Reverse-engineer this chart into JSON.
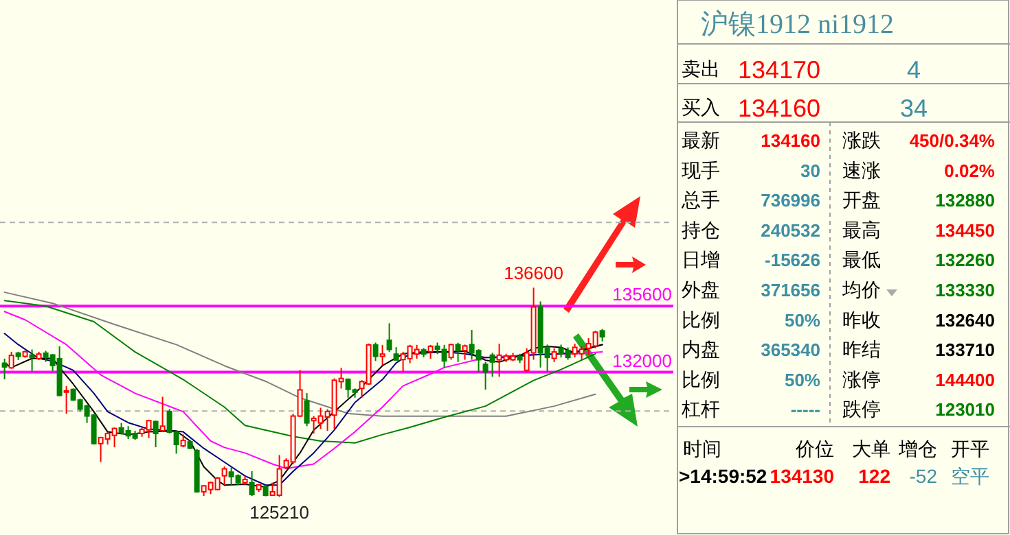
{
  "chart_data": [
    {
      "type": "candlestick",
      "tick_labels": false,
      "categories": [
        null,
        null,
        null,
        null,
        null,
        null,
        null,
        null,
        null,
        null,
        null,
        null,
        null,
        null,
        null,
        null,
        null,
        null,
        null,
        null,
        null,
        null,
        null,
        null,
        null,
        null,
        null,
        null,
        null,
        null,
        null,
        null,
        null,
        null,
        null,
        null,
        null,
        null,
        null,
        null,
        null,
        null,
        null,
        null,
        null,
        null,
        null,
        null,
        null,
        null,
        null,
        null,
        null,
        null,
        null,
        null,
        null,
        null,
        null,
        null,
        null,
        null,
        null,
        null,
        null,
        null,
        null,
        null,
        null,
        null,
        null,
        null,
        null,
        null,
        null,
        null,
        null,
        null,
        null,
        null,
        null,
        null,
        null,
        null,
        null,
        null,
        null,
        null
      ],
      "ohlc": [
        [
          132485,
          132735,
          131610,
          132285
        ],
        [
          132235,
          133110,
          132185,
          132910
        ],
        [
          133035,
          133110,
          132660,
          132860
        ],
        [
          132860,
          133185,
          132785,
          133110
        ],
        [
          132935,
          133235,
          132060,
          132810
        ],
        [
          132735,
          133110,
          132660,
          132985
        ],
        [
          133035,
          133160,
          132560,
          132810
        ],
        [
          132935,
          132985,
          132060,
          132360
        ],
        [
          132735,
          133410,
          130685,
          130735
        ],
        [
          130910,
          131235,
          129735,
          130985
        ],
        [
          131060,
          131110,
          130435,
          130485
        ],
        [
          130485,
          130560,
          129860,
          129985
        ],
        [
          130160,
          130235,
          129235,
          129610
        ],
        [
          129660,
          129735,
          128060,
          128110
        ],
        [
          128110,
          128485,
          127110,
          128435
        ],
        [
          128360,
          128735,
          128060,
          128660
        ],
        [
          128560,
          128985,
          127910,
          128935
        ],
        [
          128960,
          129235,
          128610,
          128735
        ],
        [
          128810,
          129060,
          128360,
          128535
        ],
        [
          128660,
          128810,
          128310,
          128410
        ],
        [
          128660,
          128985,
          128485,
          128885
        ],
        [
          128860,
          129410,
          128410,
          129360
        ],
        [
          129310,
          129360,
          127910,
          128660
        ],
        [
          128810,
          130660,
          128735,
          129060
        ],
        [
          129860,
          129985,
          128660,
          128735
        ],
        [
          128735,
          128810,
          127560,
          128060
        ],
        [
          127985,
          128610,
          127910,
          128285
        ],
        [
          128210,
          128310,
          127810,
          127860
        ],
        [
          127735,
          127810,
          125435,
          125485
        ],
        [
          125485,
          125860,
          125260,
          125810
        ],
        [
          125610,
          126035,
          125360,
          125985
        ],
        [
          125610,
          126285,
          125560,
          126235
        ],
        [
          126360,
          126860,
          125860,
          126735
        ],
        [
          126560,
          126810,
          125860,
          126310
        ],
        [
          126360,
          126435,
          125860,
          125985
        ],
        [
          125985,
          126360,
          125860,
          126160
        ],
        [
          125985,
          126610,
          125260,
          125335
        ],
        [
          125610,
          125910,
          125485,
          125860
        ],
        [
          125785,
          125860,
          125240,
          125300
        ],
        [
          125300,
          125985,
          125260,
          125485
        ],
        [
          125300,
          127485,
          125210,
          126735
        ],
        [
          126810,
          127310,
          126735,
          127185
        ],
        [
          127110,
          129735,
          126985,
          129610
        ],
        [
          129610,
          132110,
          129560,
          131035
        ],
        [
          130435,
          130860,
          129060,
          129235
        ],
        [
          129360,
          129610,
          128660,
          129485
        ],
        [
          129235,
          130060,
          128910,
          129610
        ],
        [
          129560,
          129985,
          128810,
          129860
        ],
        [
          129660,
          131660,
          128910,
          131560
        ],
        [
          131485,
          132235,
          131110,
          131660
        ],
        [
          131610,
          131660,
          130610,
          131060
        ],
        [
          131035,
          131110,
          130610,
          130910
        ],
        [
          131110,
          131560,
          130610,
          131485
        ],
        [
          131360,
          133560,
          131310,
          133485
        ],
        [
          133485,
          133610,
          132610,
          132860
        ],
        [
          132860,
          133485,
          132360,
          132985
        ],
        [
          133735,
          134660,
          133110,
          133235
        ],
        [
          132985,
          133360,
          132660,
          132660
        ],
        [
          132685,
          133110,
          132035,
          132985
        ],
        [
          132735,
          133485,
          132485,
          133410
        ],
        [
          132985,
          133485,
          132735,
          133235
        ],
        [
          133210,
          133310,
          132810,
          132985
        ],
        [
          133110,
          133485,
          132735,
          133410
        ],
        [
          133410,
          133610,
          132985,
          133235
        ],
        [
          133235,
          133485,
          132235,
          132610
        ],
        [
          132800,
          133550,
          132675,
          133500
        ],
        [
          133500,
          133600,
          132550,
          133175
        ],
        [
          133175,
          133500,
          132675,
          133425
        ],
        [
          133500,
          134300,
          132675,
          133050
        ],
        [
          133175,
          133250,
          132000,
          132675
        ],
        [
          132425,
          132550,
          131050,
          132000
        ],
        [
          132925,
          133050,
          131750,
          132550
        ],
        [
          132675,
          133550,
          131750,
          132925
        ],
        [
          132675,
          133000,
          132550,
          132875
        ],
        [
          132675,
          133050,
          132600,
          132875
        ],
        [
          132850,
          133000,
          132500,
          132675
        ],
        [
          132100,
          133300,
          132000,
          133050
        ],
        [
          133050,
          136600,
          132675,
          135550
        ],
        [
          135550,
          135850,
          132250,
          133050
        ],
        [
          133350,
          133500,
          132050,
          132800
        ],
        [
          132750,
          133300,
          132550,
          133100
        ],
        [
          133300,
          133500,
          132800,
          133000
        ],
        [
          133175,
          133350,
          132675,
          132800
        ],
        [
          133000,
          133550,
          132800,
          133350
        ],
        [
          133000,
          133425,
          132675,
          133250
        ],
        [
          133300,
          133850,
          132925,
          133550
        ],
        [
          133425,
          134250,
          133300,
          134175
        ],
        [
          134250,
          134350,
          133675,
          133925
        ]
      ],
      "series": [
        {
          "type": "line",
          "color": "#808080",
          "values": [
            136350,
            null,
            null,
            null,
            null,
            null,
            null,
            135750,
            null,
            null,
            null,
            null,
            null,
            null,
            null,
            null,
            134600,
            null,
            null,
            null,
            null,
            null,
            null,
            null,
            null,
            133500,
            null,
            null,
            null,
            null,
            null,
            null,
            132350,
            null,
            null,
            null,
            null,
            null,
            131500,
            null,
            null,
            null,
            null,
            130600,
            null,
            null,
            null,
            null,
            null,
            null,
            129750,
            null,
            null,
            null,
            null,
            129600,
            null,
            null,
            null,
            null,
            null,
            null,
            null,
            null,
            129600,
            null,
            null,
            null,
            null,
            null,
            null,
            null,
            null,
            129600,
            null,
            null,
            null,
            null,
            null,
            null,
            130150,
            null,
            null,
            null,
            null,
            null,
            130800,
            null
          ]
        },
        {
          "type": "line",
          "color": "#008000",
          "values": [
            135900,
            null,
            null,
            null,
            null,
            null,
            135600,
            null,
            null,
            null,
            null,
            null,
            null,
            134750,
            null,
            null,
            null,
            null,
            null,
            133100,
            null,
            null,
            null,
            null,
            null,
            null,
            131600,
            null,
            null,
            null,
            null,
            null,
            130100,
            null,
            null,
            129100,
            null,
            null,
            null,
            null,
            null,
            null,
            128500,
            null,
            null,
            null,
            128250,
            null,
            null,
            null,
            null,
            128150,
            null,
            null,
            null,
            128600,
            null,
            null,
            null,
            129000,
            null,
            null,
            null,
            null,
            129550,
            null,
            null,
            null,
            null,
            null,
            130150,
            null,
            null,
            null,
            null,
            null,
            null,
            131550,
            null,
            null,
            null,
            132150,
            null,
            null,
            null,
            null,
            133000,
            null
          ]
        },
        {
          "type": "line",
          "color": "#ff00ff",
          "values": [
            135300,
            null,
            null,
            134850,
            null,
            null,
            null,
            null,
            null,
            133500,
            null,
            null,
            null,
            null,
            131850,
            null,
            null,
            null,
            null,
            130850,
            null,
            null,
            null,
            null,
            null,
            null,
            129850,
            null,
            null,
            null,
            128250,
            null,
            127900,
            null,
            null,
            127600,
            null,
            null,
            null,
            127000,
            null,
            126750,
            null,
            null,
            null,
            127000,
            null,
            null,
            127850,
            null,
            null,
            128750,
            null,
            null,
            null,
            130100,
            null,
            null,
            131250,
            null,
            null,
            null,
            131900,
            null,
            132250,
            null,
            null,
            null,
            null,
            null,
            132800,
            null,
            null,
            null,
            null,
            null,
            null,
            132950,
            null,
            null,
            null,
            null,
            null,
            133000,
            null,
            null,
            null,
            133100
          ]
        },
        {
          "type": "line",
          "color": "#000080",
          "values": [
            134100,
            null,
            133500,
            null,
            null,
            132750,
            null,
            132600,
            null,
            null,
            132100,
            null,
            null,
            130850,
            null,
            129850,
            null,
            null,
            129250,
            null,
            null,
            128900,
            null,
            null,
            null,
            null,
            128750,
            null,
            null,
            127850,
            null,
            null,
            127100,
            null,
            null,
            126350,
            null,
            null,
            125850,
            null,
            125850,
            null,
            126600,
            null,
            null,
            127600,
            null,
            null,
            128850,
            null,
            null,
            130350,
            null,
            null,
            null,
            131600,
            null,
            132500,
            null,
            133000,
            null,
            null,
            null,
            null,
            133100,
            null,
            null,
            133000,
            null,
            null,
            132800,
            null,
            null,
            132800,
            null,
            null,
            null,
            132950,
            null,
            null,
            null,
            133000,
            null,
            133100,
            null,
            null,
            null,
            133500
          ]
        },
        {
          "type": "line",
          "color": "#000000",
          "values": [
            132500,
            132250,
            null,
            null,
            132750,
            null,
            null,
            132750,
            132250,
            null,
            131350,
            null,
            null,
            129850,
            null,
            128750,
            null,
            null,
            128600,
            null,
            null,
            128750,
            null,
            null,
            null,
            128800,
            null,
            128250,
            null,
            126850,
            null,
            126100,
            125850,
            null,
            null,
            125900,
            null,
            null,
            125750,
            null,
            126100,
            null,
            null,
            127600,
            null,
            128850,
            null,
            null,
            129850,
            null,
            null,
            130850,
            null,
            null,
            null,
            132350,
            null,
            null,
            133000,
            null,
            null,
            133100,
            null,
            null,
            133100,
            null,
            null,
            133150,
            null,
            null,
            132650,
            null,
            132550,
            null,
            null,
            132900,
            null,
            133300,
            null,
            133400,
            null,
            133350,
            null,
            133050,
            null,
            133300,
            null,
            133500
          ]
        }
      ],
      "ref_lines": [
        {
          "axis": "y",
          "value": 135600,
          "label": "135600",
          "color": "#ff00ff",
          "line_style": "solid"
        },
        {
          "axis": "y",
          "value": 132000,
          "label": "132000",
          "color": "#ff00ff",
          "line_style": "solid"
        },
        {
          "axis": "y",
          "value": 140150,
          "color": "#b0b0b0",
          "line_style": "dashed"
        },
        {
          "axis": "y",
          "value": 129880,
          "color": "#b0b0b0",
          "line_style": "dashed"
        }
      ],
      "annotations": [
        {
          "text": "136600",
          "y": 136600
        },
        {
          "text": "125210",
          "y": 125210
        }
      ]
    },
    {
      "type": "other",
      "title": "沪镍1912  ni1912",
      "annotations": [
        "卖出",
        "134170",
        "4",
        "买入",
        "134160",
        "34",
        "最新",
        "134160",
        "涨跌",
        "450/0.34%",
        "现手",
        "30",
        "速涨",
        "0.02%",
        "总手",
        "736996",
        "开盘",
        "132880",
        "持仓",
        "240532",
        "最高",
        "134450",
        "日增",
        "-15626",
        "最低",
        "132260",
        "外盘",
        "371656",
        "均价",
        "133330",
        "比例",
        "50%",
        "昨收",
        "132640",
        "内盘",
        "365340",
        "昨结",
        "133710",
        "比例",
        "50%",
        "涨停",
        "144400",
        "杠杆",
        "-----",
        "跌停",
        "123010",
        "时间",
        "价位",
        "大单",
        "增仓",
        "开平",
        ">14:59:52",
        "134130",
        "122",
        "-52",
        "空平"
      ]
    }
  ]
}
